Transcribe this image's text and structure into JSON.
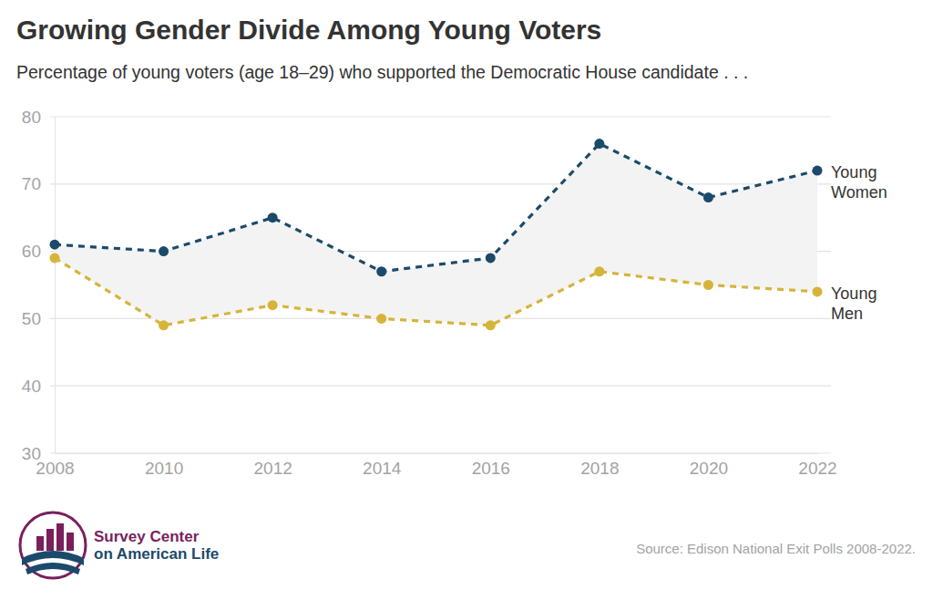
{
  "chart_data": {
    "type": "line",
    "title": "Growing Gender Divide Among Young Voters",
    "subtitle": "Percentage of young voters (age 18–29) who supported the Democratic House candidate . . .",
    "x": [
      2008,
      2010,
      2012,
      2014,
      2016,
      2018,
      2020,
      2022
    ],
    "xlim": [
      2008,
      2022
    ],
    "xticks": [
      2008,
      2010,
      2012,
      2014,
      2016,
      2018,
      2020,
      2022
    ],
    "ylim": [
      30,
      80
    ],
    "yticks": [
      30,
      40,
      50,
      60,
      70,
      80
    ],
    "grid": true,
    "marker": "circle",
    "line_style": "dashed",
    "series": [
      {
        "name": "Young Women",
        "color": "#1b4a6b",
        "values": [
          61,
          60,
          65,
          57,
          59,
          76,
          68,
          72
        ]
      },
      {
        "name": "Young Men",
        "color": "#d6b43a",
        "values": [
          59,
          49,
          52,
          50,
          49,
          57,
          55,
          54
        ]
      }
    ],
    "source": "Source: Edison National Exit Polls 2008-2022.",
    "logo": [
      "Survey Center",
      "on American Life"
    ]
  }
}
